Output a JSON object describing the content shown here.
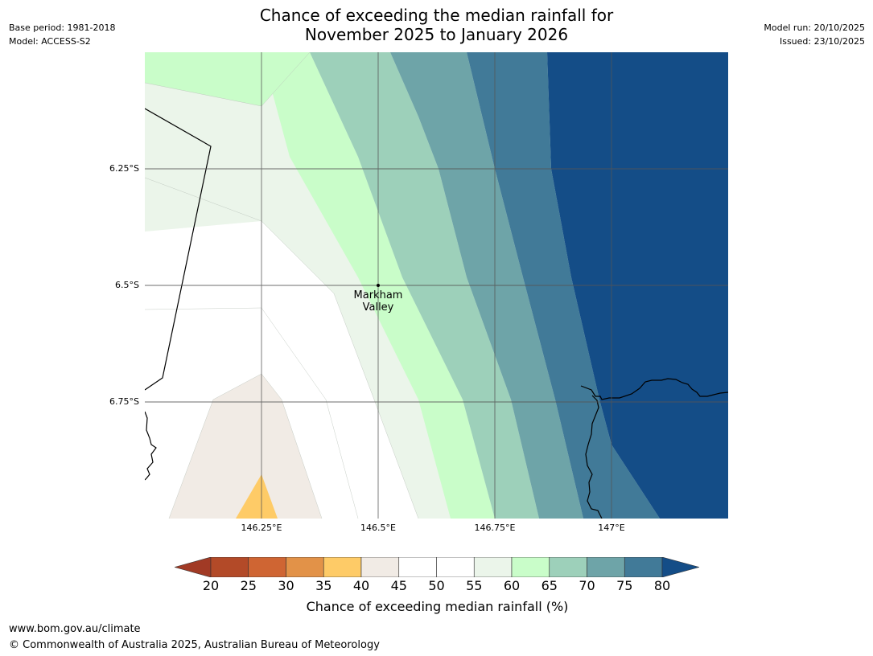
{
  "header": {
    "title_line1": "Chance of exceeding the median rainfall for",
    "title_line2": "November 2025 to January 2026",
    "base_period": "Base period: 1981-2018",
    "model": "Model: ACCESS-S2",
    "model_run": "Model run: 20/10/2025",
    "issued": "Issued: 23/10/2025"
  },
  "map": {
    "latitude_labels": [
      "6.25°S",
      "6.5°S",
      "6.75°S"
    ],
    "longitude_labels": [
      "146.25°E",
      "146.5°E",
      "146.75°E",
      "147°E"
    ],
    "place": {
      "name_line1": "Markham",
      "name_line2": "Valley"
    }
  },
  "colorbar": {
    "ticks": [
      "20",
      "25",
      "30",
      "35",
      "40",
      "45",
      "50",
      "55",
      "60",
      "65",
      "70",
      "75",
      "80"
    ],
    "title": "Chance of exceeding median rainfall (%)",
    "colors": [
      "#a13a25",
      "#b34a28",
      "#cf6533",
      "#e29248",
      "#fecb67",
      "#f1ebe5",
      "#ffffff",
      "#ffffff",
      "#ebf5ea",
      "#c9fdc9",
      "#9dd0ba",
      "#6ea4a8",
      "#417a98",
      "#144d87"
    ]
  },
  "footer": {
    "url": "www.bom.gov.au/climate",
    "copyright": "© Commonwealth of Australia 2025, Australian Bureau of Meteorology"
  }
}
